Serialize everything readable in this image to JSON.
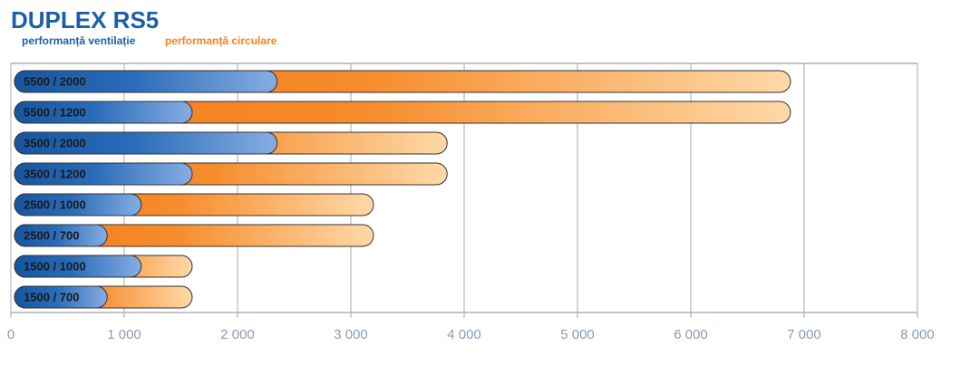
{
  "chart_data": {
    "type": "overlap-bar",
    "title": "DUPLEX RS5",
    "categories": [
      "5500 / 2000",
      "5500 / 1200",
      "3500 / 2000",
      "3500 / 1200",
      "2500 / 1000",
      "2500 / 700",
      "1500 / 1000",
      "1500 / 700"
    ],
    "series": [
      {
        "name": "performanță circulare",
        "color": "#f58220",
        "values": [
          6880,
          6880,
          3850,
          3850,
          3200,
          3200,
          1600,
          1600
        ]
      },
      {
        "name": "performanță ventilație",
        "color": "#1b5faa",
        "values": [
          2350,
          1600,
          2350,
          1600,
          1150,
          850,
          1150,
          850
        ]
      }
    ],
    "xlim": [
      0,
      8000
    ],
    "xticks": [
      0,
      {
        "value": 1000,
        "label": "1 000"
      },
      {
        "value": 2000,
        "label": "2 000"
      },
      {
        "value": 3000,
        "label": "3 000"
      },
      {
        "value": 4000,
        "label": "4 000"
      },
      {
        "value": 5000,
        "label": "5 000"
      },
      {
        "value": 6000,
        "label": "6 000"
      },
      {
        "value": 7000,
        "label": "7 000"
      },
      {
        "value": 8000,
        "label": "8 000"
      }
    ],
    "grid": true
  }
}
